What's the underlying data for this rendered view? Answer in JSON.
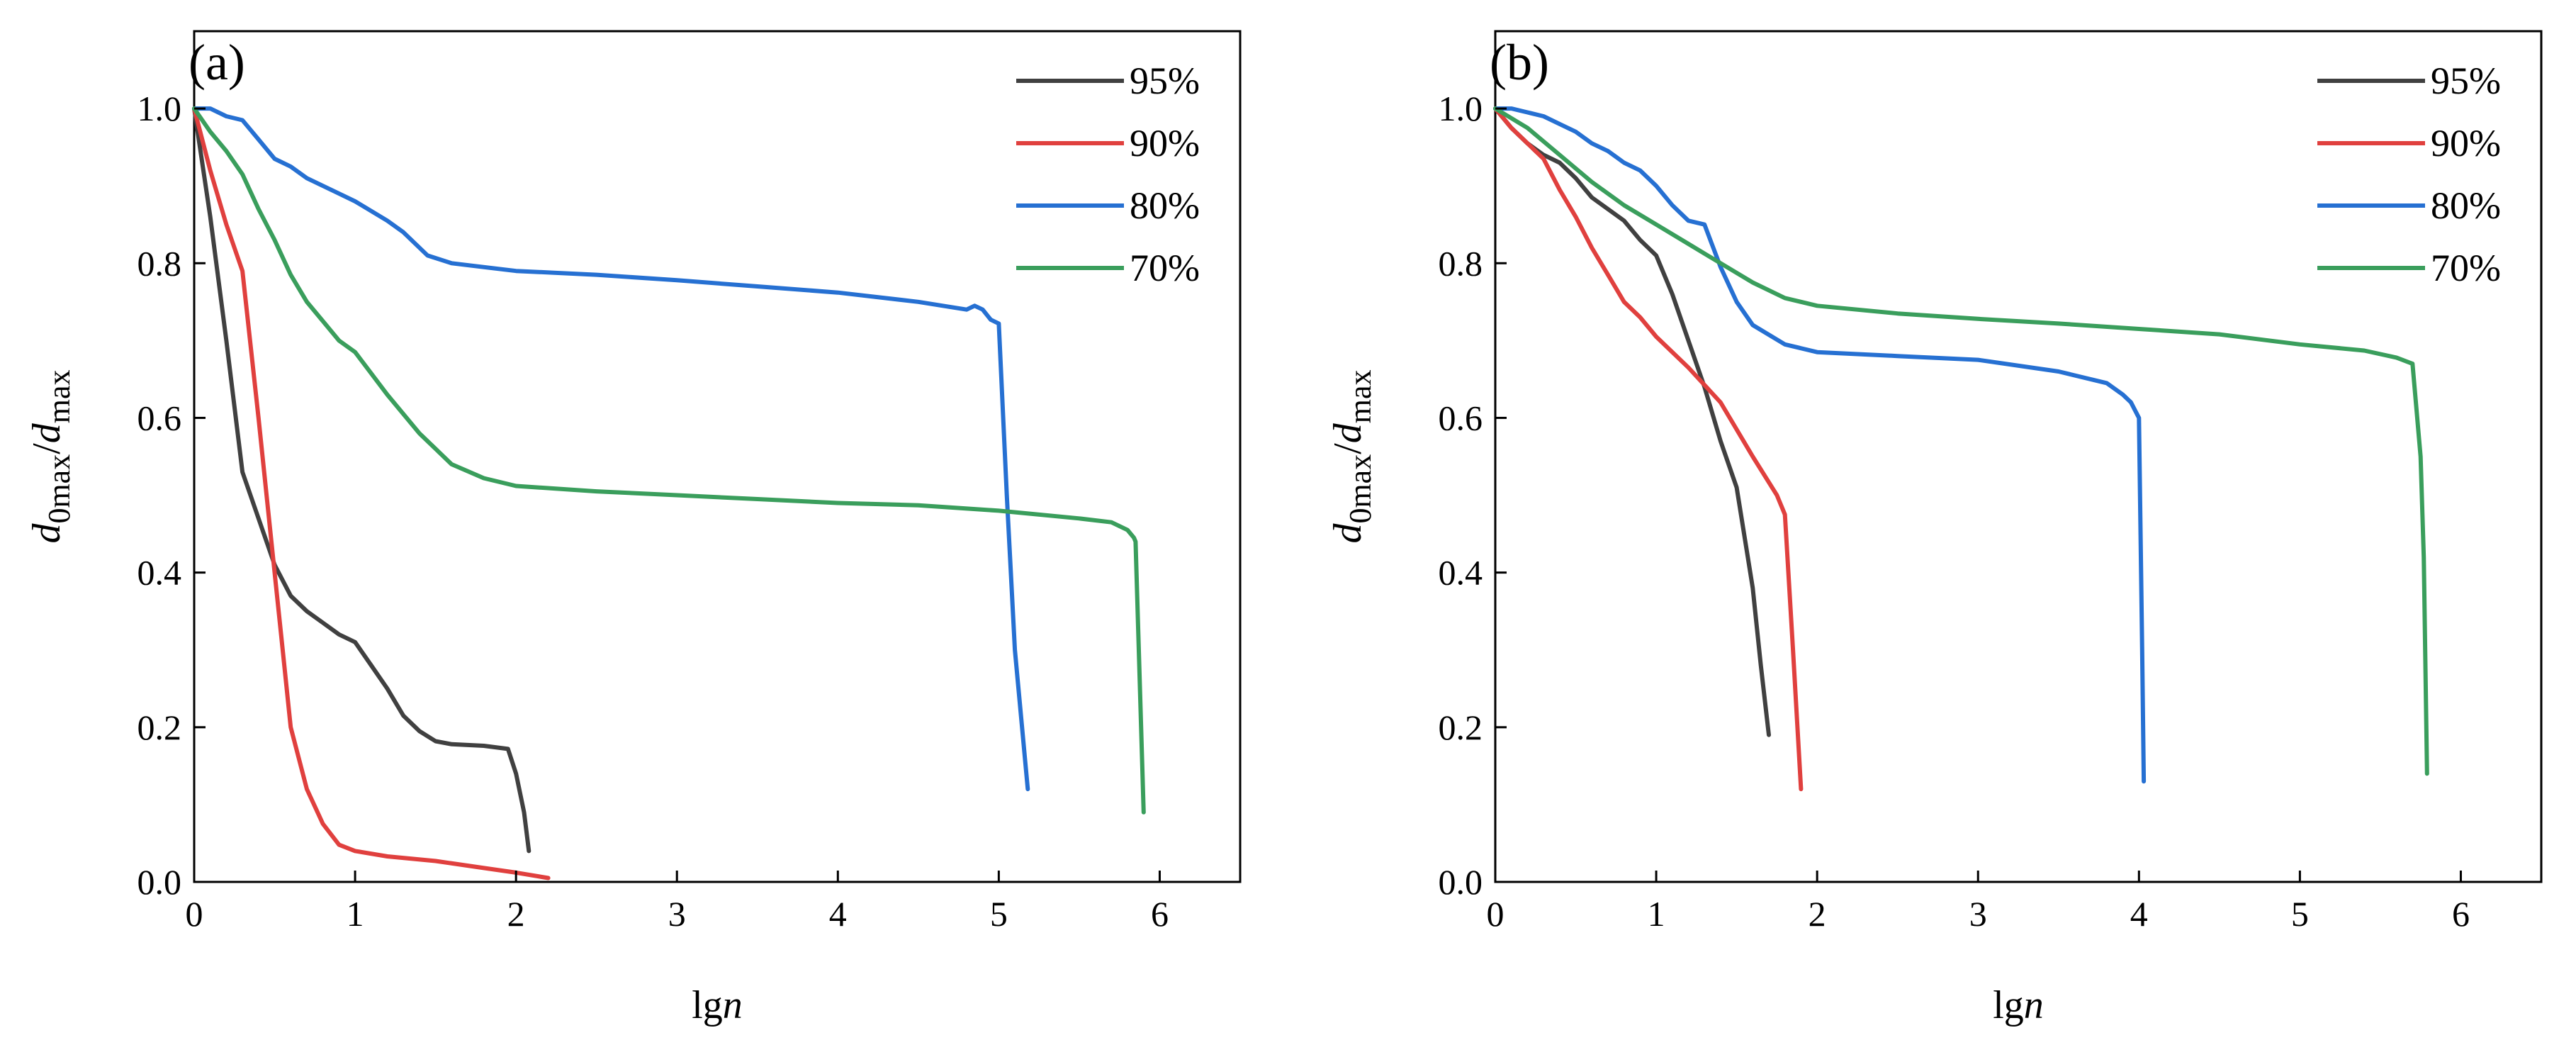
{
  "figure_description_label": "",
  "chart_data": [
    {
      "type": "line",
      "panel_label": "(a)",
      "xlabel_base": "lg",
      "xlabel_var": "n",
      "ylabel_d": "d",
      "ylabel_sub1": "0max",
      "ylabel_sep": "/",
      "ylabel_sub2": "max",
      "xlim": [
        0,
        6.5
      ],
      "ylim": [
        0,
        1.1
      ],
      "xticks": [
        "0",
        "1",
        "2",
        "3",
        "4",
        "5",
        "6"
      ],
      "xtick_values": [
        0,
        1,
        2,
        3,
        4,
        5,
        6
      ],
      "yticks": [
        "0.0",
        "0.2",
        "0.4",
        "0.6",
        "0.8",
        "1.0"
      ],
      "ytick_values": [
        0,
        0.2,
        0.4,
        0.6,
        0.8,
        1.0
      ],
      "legend_position": "top-right",
      "series": [
        {
          "name": "95%",
          "color": "#404040",
          "x": [
            0,
            0.1,
            0.2,
            0.3,
            0.4,
            0.5,
            0.6,
            0.7,
            0.8,
            0.9,
            1.0,
            1.1,
            1.2,
            1.3,
            1.4,
            1.5,
            1.6,
            1.8,
            1.95,
            2.0,
            2.05,
            2.08
          ],
          "y": [
            1.0,
            0.86,
            0.7,
            0.53,
            0.47,
            0.41,
            0.37,
            0.35,
            0.335,
            0.32,
            0.31,
            0.28,
            0.25,
            0.215,
            0.195,
            0.182,
            0.178,
            0.176,
            0.172,
            0.14,
            0.09,
            0.04
          ]
        },
        {
          "name": "90%",
          "color": "#e0403e",
          "x": [
            0,
            0.1,
            0.2,
            0.3,
            0.4,
            0.5,
            0.55,
            0.6,
            0.7,
            0.8,
            0.9,
            1.0,
            1.2,
            1.5,
            1.8,
            2.0,
            2.2
          ],
          "y": [
            1.0,
            0.92,
            0.85,
            0.79,
            0.6,
            0.4,
            0.3,
            0.2,
            0.12,
            0.075,
            0.048,
            0.04,
            0.033,
            0.027,
            0.018,
            0.012,
            0.005
          ]
        },
        {
          "name": "80%",
          "color": "#2670d2",
          "x": [
            0,
            0.1,
            0.2,
            0.3,
            0.4,
            0.5,
            0.6,
            0.7,
            0.8,
            0.9,
            1.0,
            1.2,
            1.3,
            1.45,
            1.6,
            2.0,
            2.5,
            3.0,
            3.5,
            4.0,
            4.5,
            4.8,
            4.85,
            4.9,
            4.95,
            5.0,
            5.05,
            5.1,
            5.18
          ],
          "y": [
            1.0,
            1.0,
            0.99,
            0.985,
            0.96,
            0.935,
            0.925,
            0.91,
            0.9,
            0.89,
            0.88,
            0.855,
            0.84,
            0.81,
            0.8,
            0.79,
            0.785,
            0.778,
            0.77,
            0.762,
            0.75,
            0.74,
            0.745,
            0.74,
            0.727,
            0.722,
            0.5,
            0.3,
            0.12
          ]
        },
        {
          "name": "70%",
          "color": "#3a9e5c",
          "x": [
            0,
            0.1,
            0.2,
            0.3,
            0.4,
            0.5,
            0.6,
            0.7,
            0.8,
            0.9,
            1.0,
            1.2,
            1.4,
            1.5,
            1.6,
            1.8,
            2.0,
            2.5,
            3.0,
            3.5,
            4.0,
            4.5,
            5.0,
            5.5,
            5.7,
            5.8,
            5.84,
            5.85,
            5.9
          ],
          "y": [
            1.0,
            0.97,
            0.945,
            0.915,
            0.87,
            0.83,
            0.785,
            0.75,
            0.725,
            0.7,
            0.685,
            0.63,
            0.58,
            0.56,
            0.54,
            0.522,
            0.512,
            0.505,
            0.5,
            0.495,
            0.49,
            0.487,
            0.48,
            0.47,
            0.465,
            0.455,
            0.445,
            0.44,
            0.09
          ]
        }
      ]
    },
    {
      "type": "line",
      "panel_label": "(b)",
      "xlabel_base": "lg",
      "xlabel_var": "n",
      "ylabel_d": "d",
      "ylabel_sub1": "0max",
      "ylabel_sep": "/",
      "ylabel_sub2": "max",
      "xlim": [
        0,
        6.5
      ],
      "ylim": [
        0,
        1.1
      ],
      "xticks": [
        "0",
        "1",
        "2",
        "3",
        "4",
        "5",
        "6"
      ],
      "xtick_values": [
        0,
        1,
        2,
        3,
        4,
        5,
        6
      ],
      "yticks": [
        "0.0",
        "0.2",
        "0.4",
        "0.6",
        "0.8",
        "1.0"
      ],
      "ytick_values": [
        0,
        0.2,
        0.4,
        0.6,
        0.8,
        1.0
      ],
      "legend_position": "top-right",
      "series": [
        {
          "name": "95%",
          "color": "#404040",
          "x": [
            0,
            0.1,
            0.2,
            0.3,
            0.4,
            0.5,
            0.6,
            0.7,
            0.8,
            0.9,
            1.0,
            1.1,
            1.2,
            1.3,
            1.4,
            1.5,
            1.6,
            1.65,
            1.7
          ],
          "y": [
            1.0,
            0.975,
            0.955,
            0.94,
            0.93,
            0.91,
            0.885,
            0.87,
            0.855,
            0.83,
            0.81,
            0.76,
            0.7,
            0.64,
            0.57,
            0.51,
            0.38,
            0.28,
            0.19
          ]
        },
        {
          "name": "90%",
          "color": "#e0403e",
          "x": [
            0,
            0.1,
            0.2,
            0.3,
            0.4,
            0.5,
            0.6,
            0.7,
            0.8,
            0.9,
            1.0,
            1.2,
            1.4,
            1.6,
            1.75,
            1.8,
            1.85,
            1.9
          ],
          "y": [
            1.0,
            0.975,
            0.955,
            0.935,
            0.895,
            0.86,
            0.82,
            0.785,
            0.75,
            0.73,
            0.705,
            0.665,
            0.62,
            0.55,
            0.5,
            0.475,
            0.3,
            0.12
          ]
        },
        {
          "name": "80%",
          "color": "#2670d2",
          "x": [
            0,
            0.1,
            0.2,
            0.3,
            0.4,
            0.5,
            0.6,
            0.7,
            0.8,
            0.9,
            1.0,
            1.1,
            1.2,
            1.3,
            1.4,
            1.5,
            1.6,
            1.8,
            2.0,
            2.5,
            3.0,
            3.5,
            3.8,
            3.9,
            3.95,
            4.0,
            4.02,
            4.03
          ],
          "y": [
            1.0,
            1.0,
            0.995,
            0.99,
            0.98,
            0.97,
            0.955,
            0.945,
            0.93,
            0.92,
            0.9,
            0.875,
            0.855,
            0.85,
            0.795,
            0.75,
            0.72,
            0.695,
            0.685,
            0.68,
            0.675,
            0.66,
            0.645,
            0.63,
            0.62,
            0.6,
            0.3,
            0.13
          ]
        },
        {
          "name": "70%",
          "color": "#3a9e5c",
          "x": [
            0,
            0.2,
            0.4,
            0.6,
            0.8,
            1.0,
            1.2,
            1.4,
            1.6,
            1.8,
            2.0,
            2.5,
            3.0,
            3.5,
            4.0,
            4.5,
            5.0,
            5.4,
            5.6,
            5.7,
            5.75,
            5.77,
            5.79
          ],
          "y": [
            1.0,
            0.975,
            0.94,
            0.905,
            0.875,
            0.85,
            0.825,
            0.8,
            0.775,
            0.755,
            0.745,
            0.735,
            0.728,
            0.722,
            0.715,
            0.708,
            0.695,
            0.687,
            0.678,
            0.67,
            0.55,
            0.42,
            0.14
          ]
        }
      ]
    }
  ]
}
